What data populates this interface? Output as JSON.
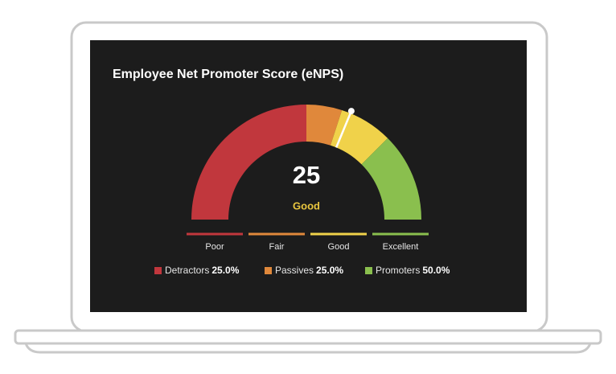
{
  "chart_data": {
    "type": "gauge",
    "title": "Employee Net Promoter Score (eNPS)",
    "ylim": [
      -100,
      100
    ],
    "value": 25,
    "rating": "Good",
    "rating_color": "#e9c63f",
    "needle_color": "#ffffff",
    "bands": [
      {
        "name": "Poor",
        "color": "#c1373d",
        "range": [
          -100,
          0
        ]
      },
      {
        "name": "Fair",
        "color": "#e0883b",
        "range": [
          0,
          20
        ]
      },
      {
        "name": "Good",
        "color": "#f0d24a",
        "range": [
          20,
          50
        ]
      },
      {
        "name": "Excellent",
        "color": "#8abf4e",
        "range": [
          50,
          100
        ]
      }
    ],
    "series": [
      {
        "name": "Detractors",
        "color": "#c1373d",
        "values": [
          25
        ],
        "value_labels": [
          "25.0%"
        ]
      },
      {
        "name": "Passives",
        "color": "#e0883b",
        "values": [
          25
        ],
        "value_labels": [
          "25.0%"
        ]
      },
      {
        "name": "Promoters",
        "color": "#8abf4e",
        "values": [
          50
        ],
        "value_labels": [
          "50.0%"
        ]
      }
    ]
  }
}
